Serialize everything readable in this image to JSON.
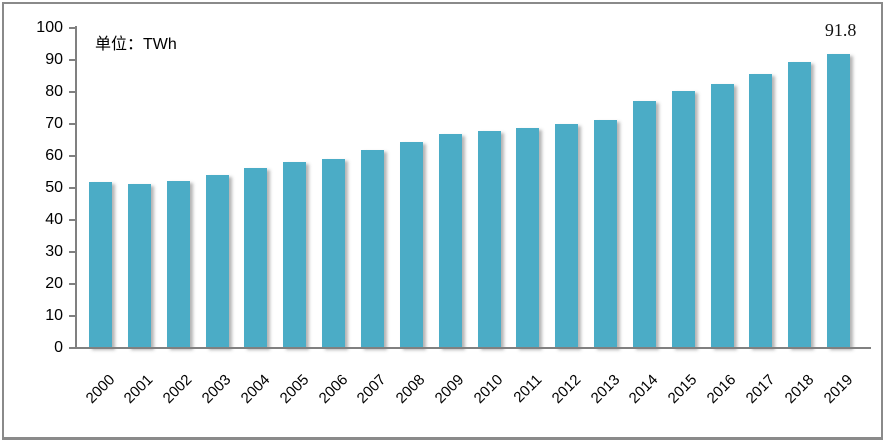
{
  "chart_data": {
    "type": "bar",
    "title": "",
    "unit_label": "单位：TWh",
    "categories": [
      "2000",
      "2001",
      "2002",
      "2003",
      "2004",
      "2005",
      "2006",
      "2007",
      "2008",
      "2009",
      "2010",
      "2011",
      "2012",
      "2013",
      "2014",
      "2015",
      "2016",
      "2017",
      "2018",
      "2019"
    ],
    "series": [
      {
        "name": "TWh",
        "values": [
          51.8,
          51.4,
          52.2,
          54.0,
          56.2,
          58.0,
          59.2,
          61.8,
          64.4,
          66.8,
          67.9,
          68.8,
          69.9,
          71.2,
          77.2,
          80.4,
          82.4,
          85.5,
          89.5,
          91.8
        ]
      }
    ],
    "ylim": [
      0,
      100
    ],
    "yticks": [
      0,
      10,
      20,
      30,
      40,
      50,
      60,
      70,
      80,
      90,
      100
    ],
    "grid": false,
    "legend": null,
    "annotation": {
      "text": "91.8",
      "category": "2019"
    },
    "colors": {
      "bar": "#4BACC6",
      "axis": "#808080",
      "text": "#000000",
      "frame": "#8a8a8a"
    }
  }
}
